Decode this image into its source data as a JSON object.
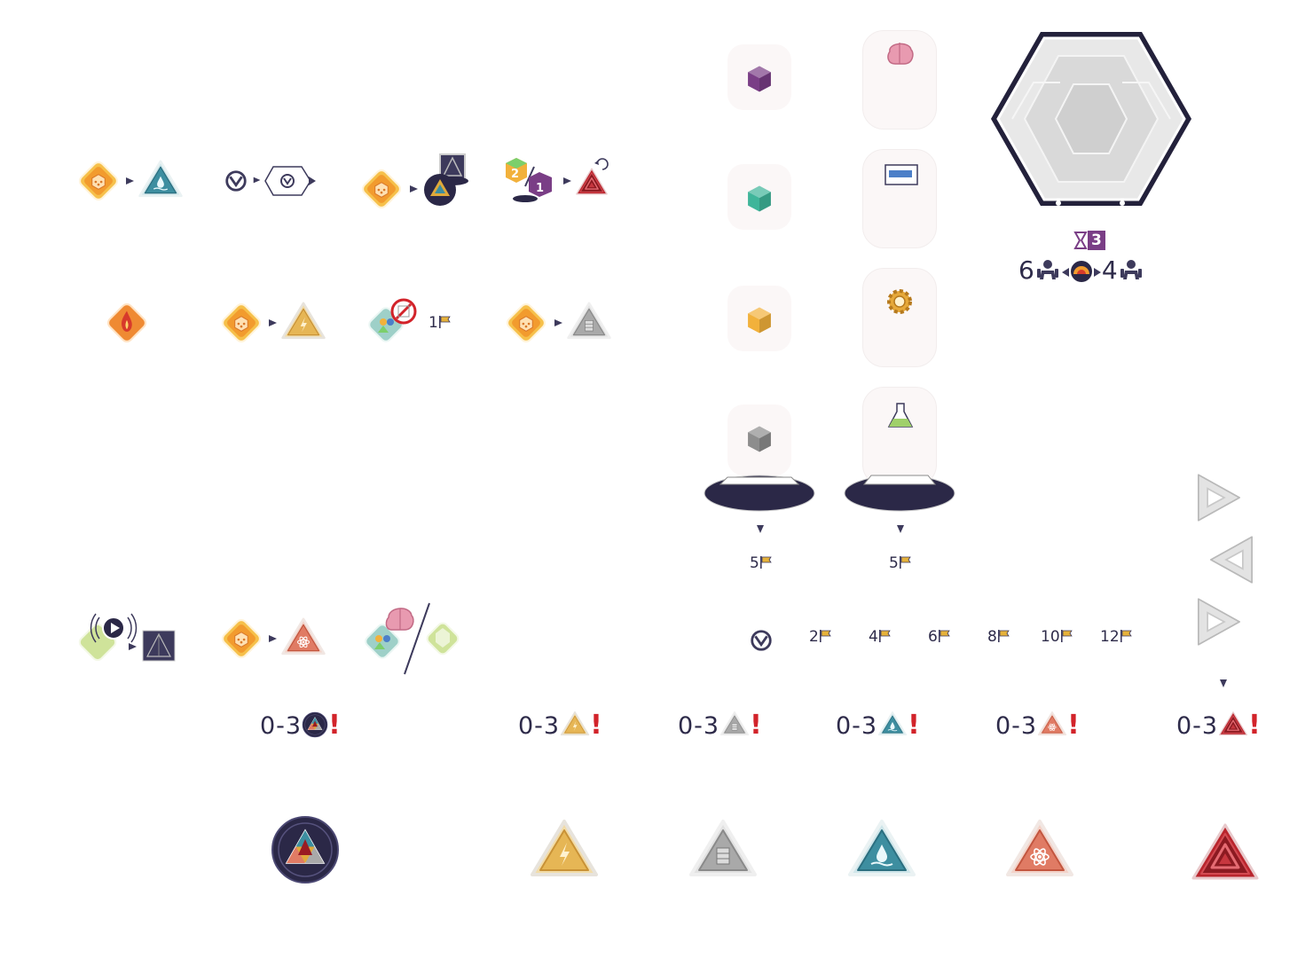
{
  "colors": {
    "navy": "#2e2b4a",
    "red_exclaim": "#d2232a",
    "gold": "#e0a93a",
    "silver": "#9b9b9b",
    "teal": "#3a8da0",
    "orange_red": "#d55a45",
    "dark_red": "#9a1b22",
    "purple": "#7a3e86",
    "green_cube": "#3fb59a",
    "yellow_cube": "#f2b13b",
    "gray_cube": "#8d8d8d"
  },
  "icons": {
    "action_tile": "orange-diamond-tile-icon",
    "triangle_gold": "lightning-triangle-icon",
    "triangle_silver": "stack-triangle-icon",
    "triangle_teal": "water-triangle-icon",
    "triangle_orange": "atom-triangle-icon",
    "triangle_red": "red-triangle-icon",
    "round_token": "dark-round-triangle-token-icon"
  },
  "labels": {
    "one_flag": "1",
    "pedestal_left_flag": "5",
    "pedestal_right_flag": "5",
    "hourglass_value": "3",
    "hex_left_count": "6",
    "hex_right_count": "4"
  },
  "track": [
    "2",
    "4",
    "6",
    "8",
    "10",
    "12"
  ],
  "ranges": {
    "round": "0-3",
    "gold": "0-3",
    "silver": "0-3",
    "teal": "0-3",
    "orange": "0-3",
    "red": "0-3"
  }
}
